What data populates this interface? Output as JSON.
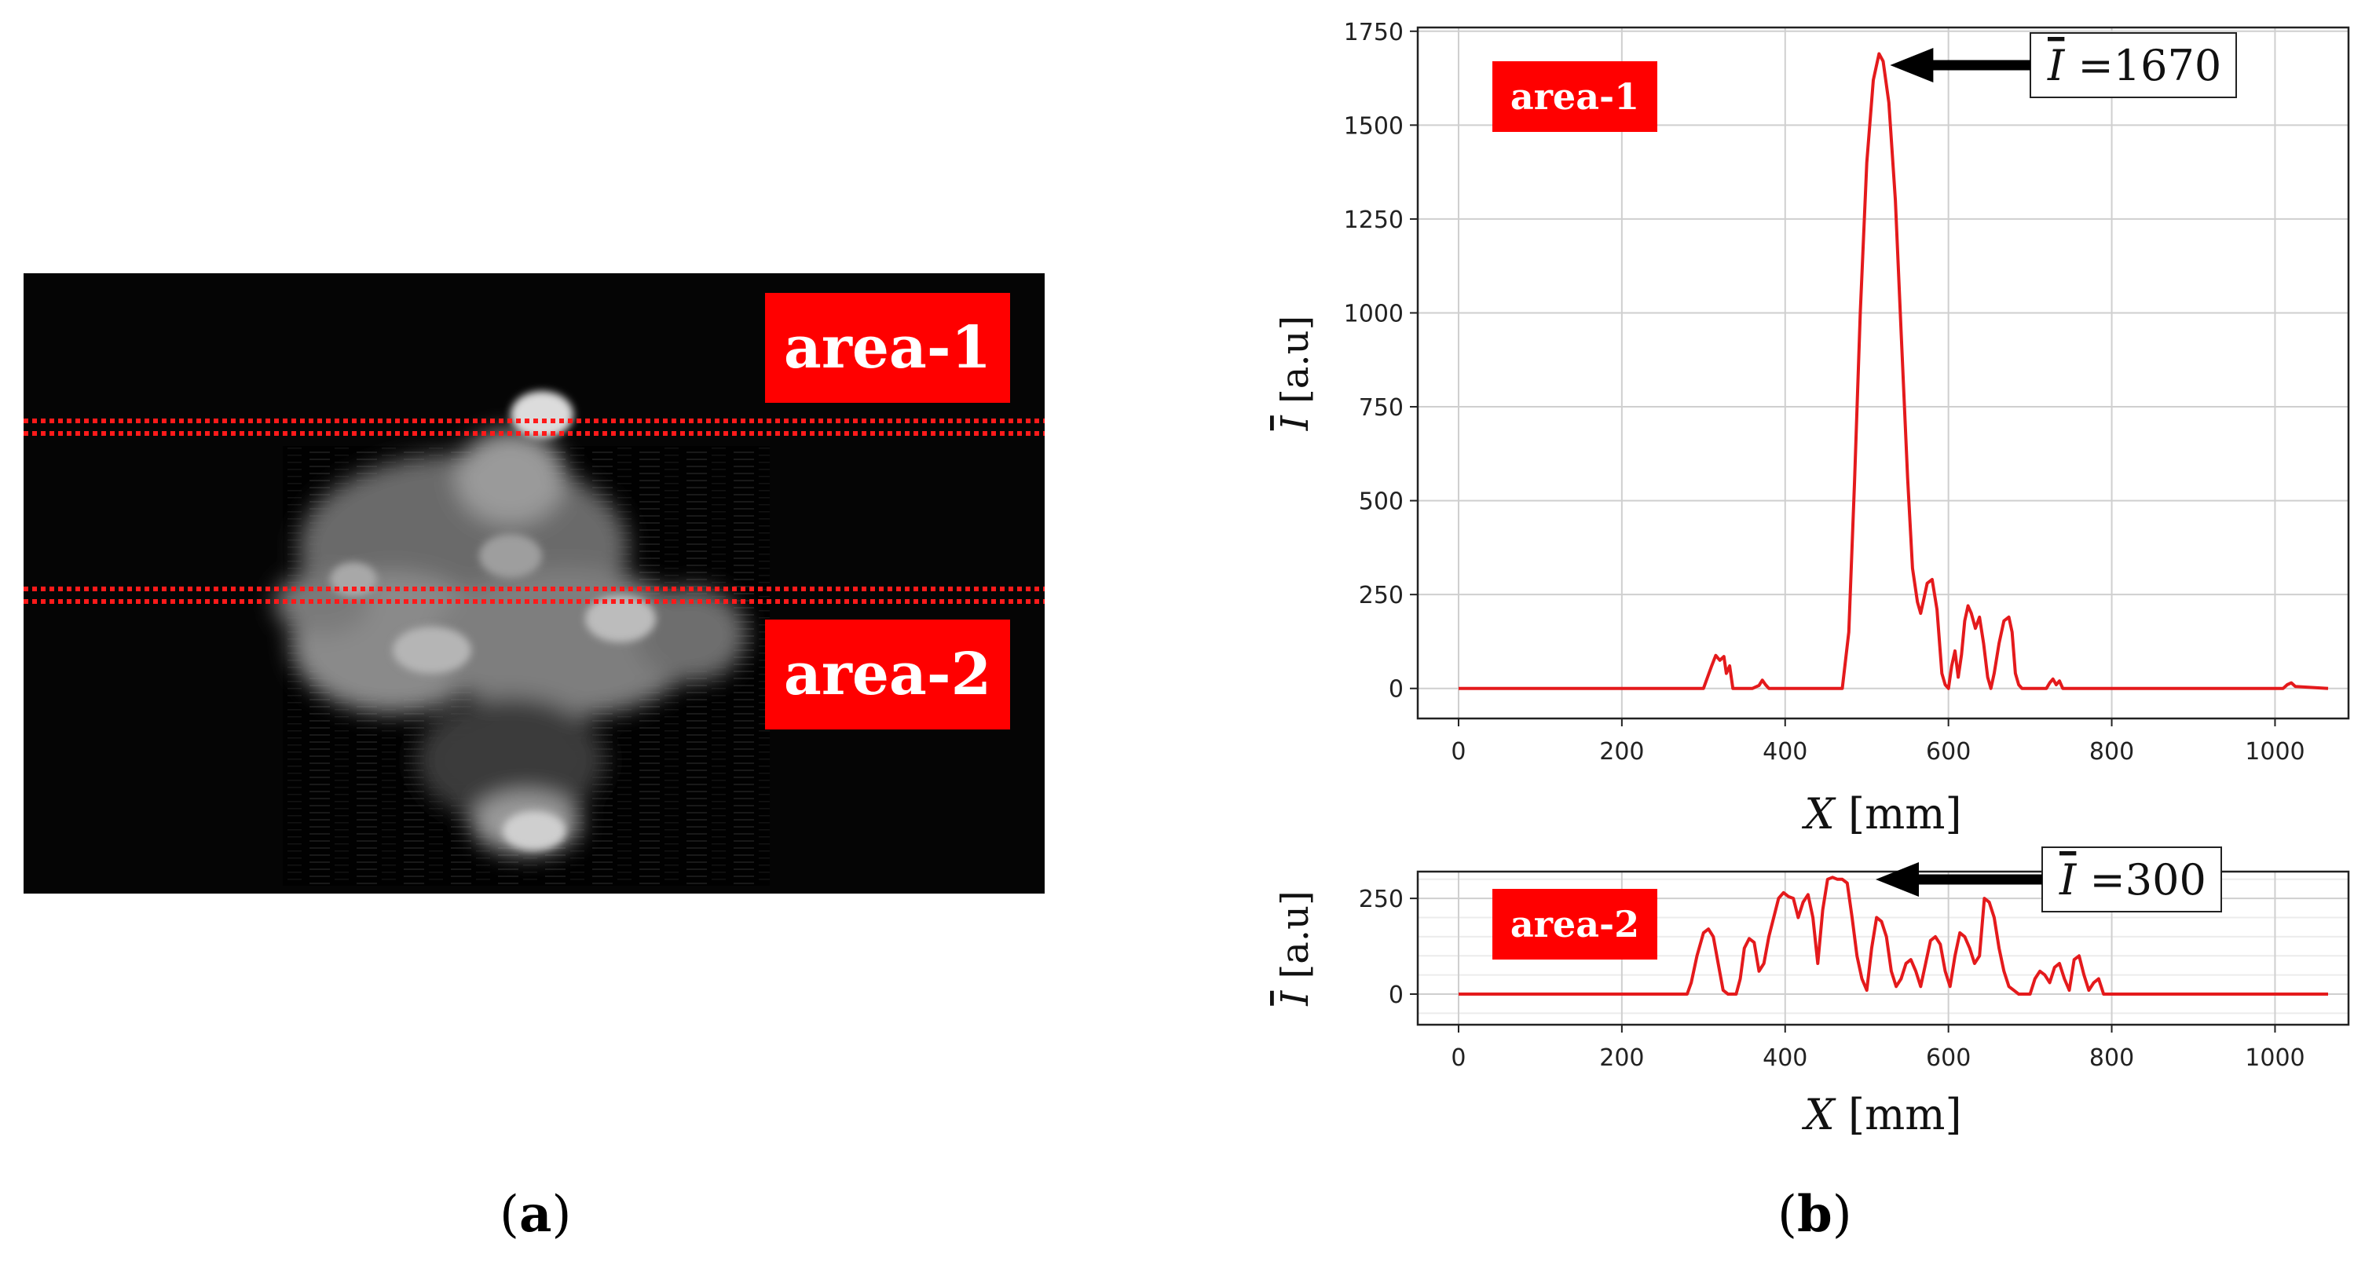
{
  "panel_a": {
    "caption_open": "(",
    "caption_letter": "a",
    "caption_close": ")",
    "area_labels": [
      "area-1",
      "area-2"
    ],
    "line_color": "#ff1a1a"
  },
  "panel_b": {
    "caption_open": "(",
    "caption_letter": "b",
    "caption_close": ")"
  },
  "colors": {
    "series": "#e41a1c",
    "tag": "#ff0000"
  },
  "chart_data": [
    {
      "type": "line",
      "tag": "area-1",
      "xlabel_symbol": "X",
      "xlabel_unit": "[mm]",
      "ylabel_symbol": "I",
      "ylabel_unit": "[a.u]",
      "xlim": [
        -50,
        1090
      ],
      "ylim": [
        -80,
        1760
      ],
      "xticks": [
        0,
        200,
        400,
        600,
        800,
        1000
      ],
      "yticks": [
        0,
        250,
        500,
        750,
        1000,
        1250,
        1500,
        1750
      ],
      "grid": true,
      "annotation": {
        "symbol": "I",
        "text": "=1670",
        "x": 517,
        "y": 1690
      },
      "series": [
        {
          "x": [
            0,
            300,
            310,
            315,
            320,
            325,
            328,
            332,
            336,
            345,
            360,
            368,
            372,
            376,
            380,
            470,
            478,
            485,
            492,
            500,
            508,
            515,
            520,
            527,
            535,
            542,
            550,
            556,
            562,
            566,
            570,
            574,
            580,
            586,
            592,
            596,
            600,
            604,
            608,
            612,
            616,
            620,
            624,
            628,
            633,
            638,
            643,
            648,
            652,
            656,
            662,
            668,
            674,
            678,
            682,
            686,
            690,
            696,
            720,
            724,
            728,
            732,
            736,
            740,
            1010,
            1015,
            1020,
            1025,
            1065
          ],
          "y": [
            0,
            0,
            60,
            88,
            75,
            85,
            40,
            60,
            0,
            0,
            0,
            8,
            22,
            10,
            0,
            0,
            150,
            550,
            1000,
            1400,
            1620,
            1690,
            1670,
            1560,
            1300,
            950,
            560,
            320,
            230,
            200,
            240,
            280,
            290,
            210,
            40,
            10,
            0,
            60,
            100,
            30,
            90,
            180,
            220,
            200,
            160,
            190,
            120,
            30,
            0,
            40,
            120,
            180,
            190,
            150,
            40,
            10,
            0,
            0,
            0,
            15,
            25,
            10,
            20,
            0,
            0,
            10,
            15,
            5,
            0
          ]
        }
      ]
    },
    {
      "type": "line",
      "tag": "area-2",
      "xlabel_symbol": "X",
      "xlabel_unit": "[mm]",
      "ylabel_symbol": "I",
      "ylabel_unit": "[a.u]",
      "xlim": [
        -50,
        1090
      ],
      "ylim": [
        -80,
        320
      ],
      "xticks": [
        0,
        200,
        400,
        600,
        800,
        1000
      ],
      "yticks": [
        0,
        250
      ],
      "grid": true,
      "annotation": {
        "symbol": "I",
        "text": "=300",
        "x": 470,
        "y": 300
      },
      "series": [
        {
          "x": [
            0,
            280,
            285,
            292,
            300,
            306,
            312,
            318,
            324,
            330,
            340,
            345,
            350,
            356,
            362,
            368,
            374,
            380,
            386,
            392,
            398,
            404,
            410,
            416,
            422,
            428,
            434,
            440,
            446,
            452,
            458,
            464,
            470,
            476,
            482,
            488,
            494,
            500,
            506,
            512,
            518,
            524,
            530,
            536,
            542,
            548,
            554,
            560,
            566,
            572,
            578,
            584,
            590,
            596,
            602,
            608,
            614,
            620,
            626,
            632,
            638,
            644,
            650,
            656,
            662,
            668,
            674,
            680,
            686,
            692,
            700,
            706,
            712,
            718,
            724,
            730,
            736,
            742,
            748,
            754,
            760,
            766,
            772,
            778,
            784,
            790,
            1065
          ],
          "y": [
            0,
            0,
            30,
            100,
            160,
            170,
            150,
            80,
            10,
            0,
            0,
            40,
            120,
            145,
            135,
            60,
            80,
            150,
            200,
            250,
            265,
            255,
            250,
            200,
            240,
            260,
            200,
            80,
            220,
            300,
            305,
            300,
            300,
            290,
            200,
            100,
            40,
            10,
            120,
            200,
            190,
            150,
            60,
            20,
            40,
            80,
            90,
            60,
            20,
            80,
            140,
            150,
            130,
            60,
            20,
            100,
            160,
            150,
            120,
            80,
            100,
            250,
            240,
            200,
            120,
            60,
            20,
            10,
            0,
            0,
            0,
            40,
            60,
            50,
            30,
            70,
            80,
            40,
            10,
            90,
            100,
            50,
            10,
            30,
            40,
            0,
            0
          ]
        }
      ]
    }
  ]
}
